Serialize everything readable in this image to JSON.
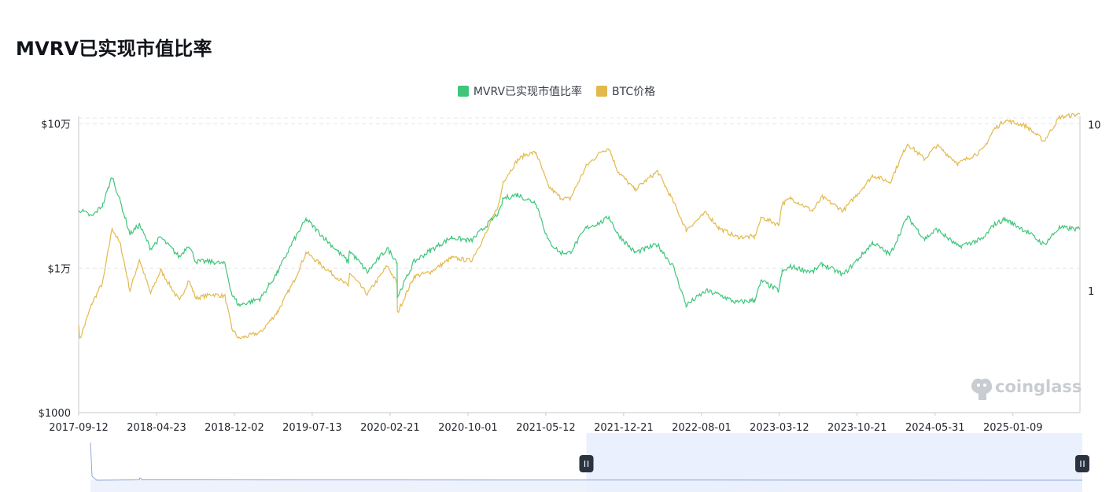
{
  "title": "MVRV已实现市值比率",
  "legend": [
    {
      "name": "MVRV已实现市值比率",
      "color": "#3fc67a"
    },
    {
      "name": "BTC价格",
      "color": "#e3b94c"
    }
  ],
  "watermark": "coinglass",
  "colors": {
    "mvrv": "#3fc67a",
    "price": "#e3b94c",
    "grid": "#e6e8eb",
    "axis": "#c7cacf",
    "slider_fill": "#eaf0fd",
    "slider_line": "#93a7d6",
    "handle": "#2c3340"
  },
  "chart_data": {
    "type": "line",
    "x_ticks": [
      "2017-09-12",
      "2018-04-23",
      "2018-12-02",
      "2019-07-13",
      "2020-02-21",
      "2020-10-01",
      "2021-05-12",
      "2021-12-21",
      "2022-08-01",
      "2023-03-12",
      "2023-10-21",
      "2024-05-31",
      "2025-01-09"
    ],
    "x_range": [
      "2017-09-12",
      "2025-07-20"
    ],
    "y_left": {
      "scale": "log",
      "range": [
        1000,
        110000
      ],
      "tick_labels": [
        "$10万",
        "$1万",
        "$1000"
      ],
      "tick_values": [
        100000,
        10000,
        1000
      ]
    },
    "y_right": {
      "scale": "log",
      "range": [
        0.185,
        11
      ],
      "tick_labels": [
        "10",
        "1"
      ],
      "tick_values": [
        10,
        1
      ]
    },
    "series": [
      {
        "name": "MVRV已实现市值比率",
        "axis": "right",
        "points": [
          [
            "2017-09-12",
            3.1
          ],
          [
            "2017-10-20",
            2.8
          ],
          [
            "2017-11-20",
            3.3
          ],
          [
            "2017-12-17",
            4.9
          ],
          [
            "2018-01-10",
            3.4
          ],
          [
            "2018-02-06",
            2.2
          ],
          [
            "2018-03-05",
            2.5
          ],
          [
            "2018-04-06",
            1.8
          ],
          [
            "2018-05-05",
            2.1
          ],
          [
            "2018-06-28",
            1.6
          ],
          [
            "2018-07-24",
            1.9
          ],
          [
            "2018-08-14",
            1.5
          ],
          [
            "2018-09-30",
            1.5
          ],
          [
            "2018-11-05",
            1.45
          ],
          [
            "2018-11-25",
            0.95
          ],
          [
            "2018-12-15",
            0.82
          ],
          [
            "2019-02-15",
            0.9
          ],
          [
            "2019-04-05",
            1.3
          ],
          [
            "2019-05-20",
            2.0
          ],
          [
            "2019-06-26",
            2.7
          ],
          [
            "2019-08-15",
            2.1
          ],
          [
            "2019-10-24",
            1.5
          ],
          [
            "2019-10-28",
            1.75
          ],
          [
            "2019-12-18",
            1.3
          ],
          [
            "2020-02-13",
            1.8
          ],
          [
            "2020-03-12",
            1.5
          ],
          [
            "2020-03-13",
            0.92
          ],
          [
            "2020-04-30",
            1.5
          ],
          [
            "2020-06-15",
            1.75
          ],
          [
            "2020-08-15",
            2.1
          ],
          [
            "2020-10-10",
            2.0
          ],
          [
            "2020-11-25",
            2.5
          ],
          [
            "2020-12-31",
            3.0
          ],
          [
            "2021-01-10",
            3.6
          ],
          [
            "2021-02-20",
            3.8
          ],
          [
            "2021-03-13",
            3.6
          ],
          [
            "2021-04-14",
            3.4
          ],
          [
            "2021-05-19",
            2.0
          ],
          [
            "2021-06-22",
            1.7
          ],
          [
            "2021-07-20",
            1.7
          ],
          [
            "2021-09-05",
            2.4
          ],
          [
            "2021-10-20",
            2.6
          ],
          [
            "2021-11-09",
            2.8
          ],
          [
            "2021-12-04",
            2.2
          ],
          [
            "2022-01-22",
            1.7
          ],
          [
            "2022-03-28",
            1.9
          ],
          [
            "2022-05-12",
            1.4
          ],
          [
            "2022-06-18",
            0.82
          ],
          [
            "2022-08-14",
            1.0
          ],
          [
            "2022-09-20",
            0.95
          ],
          [
            "2022-11-09",
            0.85
          ],
          [
            "2022-12-31",
            0.88
          ],
          [
            "2023-01-20",
            1.15
          ],
          [
            "2023-03-10",
            1.0
          ],
          [
            "2023-03-20",
            1.3
          ],
          [
            "2023-04-14",
            1.4
          ],
          [
            "2023-06-15",
            1.3
          ],
          [
            "2023-07-13",
            1.45
          ],
          [
            "2023-09-11",
            1.25
          ],
          [
            "2023-10-23",
            1.55
          ],
          [
            "2023-12-05",
            1.95
          ],
          [
            "2024-01-23",
            1.65
          ],
          [
            "2024-03-13",
            2.8
          ],
          [
            "2024-05-01",
            2.05
          ],
          [
            "2024-06-05",
            2.35
          ],
          [
            "2024-08-05",
            1.85
          ],
          [
            "2024-10-15",
            2.05
          ],
          [
            "2024-11-15",
            2.5
          ],
          [
            "2024-12-17",
            2.7
          ],
          [
            "2025-02-15",
            2.3
          ],
          [
            "2025-04-08",
            1.9
          ],
          [
            "2025-05-22",
            2.4
          ],
          [
            "2025-07-20",
            2.35
          ]
        ]
      },
      {
        "name": "BTC价格",
        "axis": "left",
        "points": [
          [
            "2017-09-12",
            4200
          ],
          [
            "2017-09-15",
            3200
          ],
          [
            "2017-10-20",
            5700
          ],
          [
            "2017-11-20",
            8000
          ],
          [
            "2017-12-17",
            19000
          ],
          [
            "2018-01-10",
            14500
          ],
          [
            "2018-02-06",
            7000
          ],
          [
            "2018-03-05",
            11500
          ],
          [
            "2018-04-06",
            6700
          ],
          [
            "2018-05-05",
            9700
          ],
          [
            "2018-06-28",
            5900
          ],
          [
            "2018-07-24",
            8300
          ],
          [
            "2018-08-14",
            6200
          ],
          [
            "2018-09-30",
            6600
          ],
          [
            "2018-11-05",
            6400
          ],
          [
            "2018-11-25",
            3800
          ],
          [
            "2018-12-15",
            3250
          ],
          [
            "2019-02-15",
            3600
          ],
          [
            "2019-04-05",
            5000
          ],
          [
            "2019-05-20",
            8000
          ],
          [
            "2019-06-26",
            12900
          ],
          [
            "2019-08-15",
            10200
          ],
          [
            "2019-10-24",
            7500
          ],
          [
            "2019-10-28",
            9300
          ],
          [
            "2019-12-18",
            6600
          ],
          [
            "2020-02-13",
            10400
          ],
          [
            "2020-03-12",
            7900
          ],
          [
            "2020-03-13",
            4900
          ],
          [
            "2020-04-30",
            8800
          ],
          [
            "2020-06-15",
            9400
          ],
          [
            "2020-08-15",
            11800
          ],
          [
            "2020-10-10",
            11300
          ],
          [
            "2020-11-25",
            18000
          ],
          [
            "2020-12-31",
            29000
          ],
          [
            "2021-01-10",
            40000
          ],
          [
            "2021-02-20",
            56000
          ],
          [
            "2021-03-13",
            61000
          ],
          [
            "2021-04-14",
            63500
          ],
          [
            "2021-05-19",
            37000
          ],
          [
            "2021-06-22",
            31000
          ],
          [
            "2021-07-20",
            30000
          ],
          [
            "2021-09-05",
            51000
          ],
          [
            "2021-10-20",
            65000
          ],
          [
            "2021-11-09",
            68000
          ],
          [
            "2021-12-04",
            47000
          ],
          [
            "2022-01-22",
            35000
          ],
          [
            "2022-03-28",
            47000
          ],
          [
            "2022-05-12",
            29000
          ],
          [
            "2022-06-18",
            18500
          ],
          [
            "2022-08-14",
            24300
          ],
          [
            "2022-09-20",
            19000
          ],
          [
            "2022-11-09",
            16500
          ],
          [
            "2022-12-31",
            16500
          ],
          [
            "2023-01-20",
            22500
          ],
          [
            "2023-03-10",
            20000
          ],
          [
            "2023-03-20",
            28000
          ],
          [
            "2023-04-14",
            30500
          ],
          [
            "2023-06-15",
            25000
          ],
          [
            "2023-07-13",
            31000
          ],
          [
            "2023-09-11",
            25000
          ],
          [
            "2023-10-23",
            33000
          ],
          [
            "2023-12-05",
            44000
          ],
          [
            "2024-01-23",
            39500
          ],
          [
            "2024-03-13",
            73000
          ],
          [
            "2024-05-01",
            57000
          ],
          [
            "2024-06-05",
            71000
          ],
          [
            "2024-08-05",
            53000
          ],
          [
            "2024-10-15",
            66000
          ],
          [
            "2024-11-15",
            91000
          ],
          [
            "2024-12-17",
            106000
          ],
          [
            "2025-02-15",
            97000
          ],
          [
            "2025-04-08",
            76000
          ],
          [
            "2025-05-22",
            111000
          ],
          [
            "2025-07-20",
            117000
          ]
        ]
      }
    ],
    "grid": true,
    "legend_position": "top-center",
    "zoom_window": {
      "start_fraction": 0.5,
      "end_fraction": 1.0
    }
  }
}
